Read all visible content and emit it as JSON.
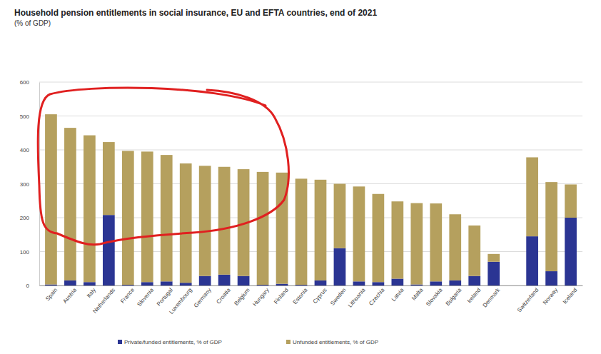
{
  "chart_data": {
    "type": "bar",
    "title": "Household pension entitlements in social insurance, EU and EFTA countries, end of 2021",
    "subtitle": "(% of GDP)",
    "categories": [
      "Spain",
      "Austria",
      "Italy",
      "Netherlands",
      "France",
      "Slovenia",
      "Portugal",
      "Luxembourg",
      "Germany",
      "Croatia",
      "Belgium",
      "Hungary",
      "Finland",
      "Estonia",
      "Cyprus",
      "Sweden",
      "Lithuania",
      "Czechia",
      "Latvia",
      "Malta",
      "Slovakia",
      "Bulgaria",
      "Ireland",
      "Denmark",
      null,
      "Switzerland",
      "Norway",
      "Iceland"
    ],
    "series": [
      {
        "name": "Private/funded entitlements, % of GDP",
        "color": "#2b3593",
        "values": [
          3,
          15,
          10,
          208,
          2,
          10,
          12,
          8,
          28,
          32,
          28,
          2,
          5,
          2,
          15,
          110,
          12,
          10,
          20,
          3,
          12,
          15,
          28,
          70,
          null,
          145,
          42,
          200
        ]
      },
      {
        "name": "Unfunded entitlements, % of GDP",
        "color": "#b5a05e",
        "values": [
          502,
          450,
          433,
          215,
          395,
          385,
          373,
          352,
          325,
          318,
          315,
          333,
          328,
          313,
          297,
          190,
          280,
          260,
          228,
          240,
          230,
          195,
          149,
          23,
          null,
          233,
          263,
          98
        ]
      }
    ],
    "stacked": true,
    "ylim": [
      0,
      600
    ],
    "yticks": [
      0,
      100,
      200,
      300,
      400,
      500,
      600
    ],
    "grid": true,
    "legend": "bottom"
  }
}
